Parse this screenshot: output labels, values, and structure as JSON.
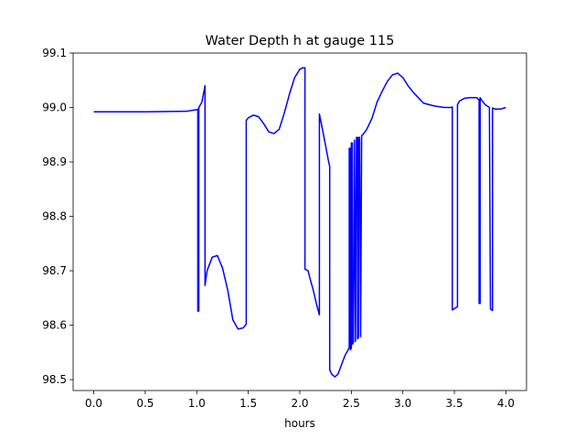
{
  "chart_data": {
    "type": "line",
    "title": "Water Depth h at gauge 115",
    "xlabel": "hours",
    "ylabel": "",
    "xlim": [
      -0.2,
      4.2
    ],
    "ylim": [
      98.48,
      99.1
    ],
    "xticks": [
      0.0,
      0.5,
      1.0,
      1.5,
      2.0,
      2.5,
      3.0,
      3.5,
      4.0
    ],
    "xtick_labels": [
      "0.0",
      "0.5",
      "1.0",
      "1.5",
      "2.0",
      "2.5",
      "3.0",
      "3.5",
      "4.0"
    ],
    "yticks": [
      98.5,
      98.6,
      98.7,
      98.8,
      98.9,
      99.0,
      99.1
    ],
    "ytick_labels": [
      "98.5",
      "98.6",
      "98.7",
      "98.8",
      "98.9",
      "99.0",
      "99.1"
    ],
    "grid": false,
    "color": "#0000ff",
    "series": [
      {
        "x": [
          0.0,
          0.5,
          0.9,
          1.0,
          1.01,
          1.01,
          1.02,
          1.02,
          1.05,
          1.08,
          1.08,
          1.1,
          1.15,
          1.2,
          1.25,
          1.3,
          1.35,
          1.4,
          1.45,
          1.48,
          1.48,
          1.5,
          1.55,
          1.6,
          1.65,
          1.7,
          1.75,
          1.8,
          1.85,
          1.9,
          1.95,
          2.0,
          2.03,
          2.05,
          2.05,
          2.08,
          2.1,
          2.13,
          2.16,
          2.19,
          2.19,
          2.22,
          2.25,
          2.28,
          2.29,
          2.29,
          2.31,
          2.34,
          2.37,
          2.4,
          2.44,
          2.47,
          2.48,
          2.48,
          2.49,
          2.49,
          2.5,
          2.5,
          2.51,
          2.51,
          2.52,
          2.53,
          2.53,
          2.54,
          2.54,
          2.55,
          2.56,
          2.56,
          2.57,
          2.57,
          2.58,
          2.59,
          2.59,
          2.6,
          2.6,
          2.62,
          2.65,
          2.7,
          2.75,
          2.8,
          2.85,
          2.9,
          2.95,
          3.0,
          3.05,
          3.1,
          3.15,
          3.2,
          3.3,
          3.4,
          3.47,
          3.48,
          3.48,
          3.53,
          3.53,
          3.55,
          3.6,
          3.65,
          3.72,
          3.73,
          3.74,
          3.74,
          3.75,
          3.75,
          3.76,
          3.77,
          3.77,
          3.8,
          3.84,
          3.85,
          3.85,
          3.87,
          3.87,
          3.9,
          3.95,
          4.0
        ],
        "y": [
          98.992,
          98.992,
          98.993,
          98.996,
          98.997,
          98.626,
          98.626,
          99.0,
          99.01,
          99.04,
          98.673,
          98.7,
          98.725,
          98.728,
          98.705,
          98.665,
          98.61,
          98.593,
          98.595,
          98.602,
          98.976,
          98.981,
          98.986,
          98.983,
          98.97,
          98.955,
          98.952,
          98.96,
          98.99,
          99.025,
          99.055,
          99.07,
          99.073,
          99.073,
          98.703,
          98.7,
          98.685,
          98.665,
          98.64,
          98.619,
          98.988,
          98.96,
          98.93,
          98.9,
          98.892,
          98.518,
          98.51,
          98.505,
          98.51,
          98.525,
          98.545,
          98.555,
          98.56,
          98.925,
          98.925,
          98.555,
          98.557,
          98.935,
          98.935,
          98.565,
          98.568,
          98.94,
          98.94,
          98.57,
          98.572,
          98.945,
          98.945,
          98.575,
          98.577,
          98.945,
          98.945,
          98.579,
          98.579,
          98.948,
          98.948,
          98.952,
          98.96,
          98.98,
          99.01,
          99.03,
          99.048,
          99.06,
          99.063,
          99.055,
          99.04,
          99.028,
          99.018,
          99.008,
          99.003,
          99.0,
          99.0,
          99.001,
          98.628,
          98.634,
          99.005,
          99.012,
          99.017,
          99.018,
          99.018,
          99.015,
          99.015,
          98.64,
          98.64,
          99.018,
          99.015,
          99.012,
          99.012,
          99.005,
          99.0,
          98.63,
          98.63,
          98.627,
          98.999,
          98.997,
          98.997,
          99.0
        ]
      }
    ]
  }
}
